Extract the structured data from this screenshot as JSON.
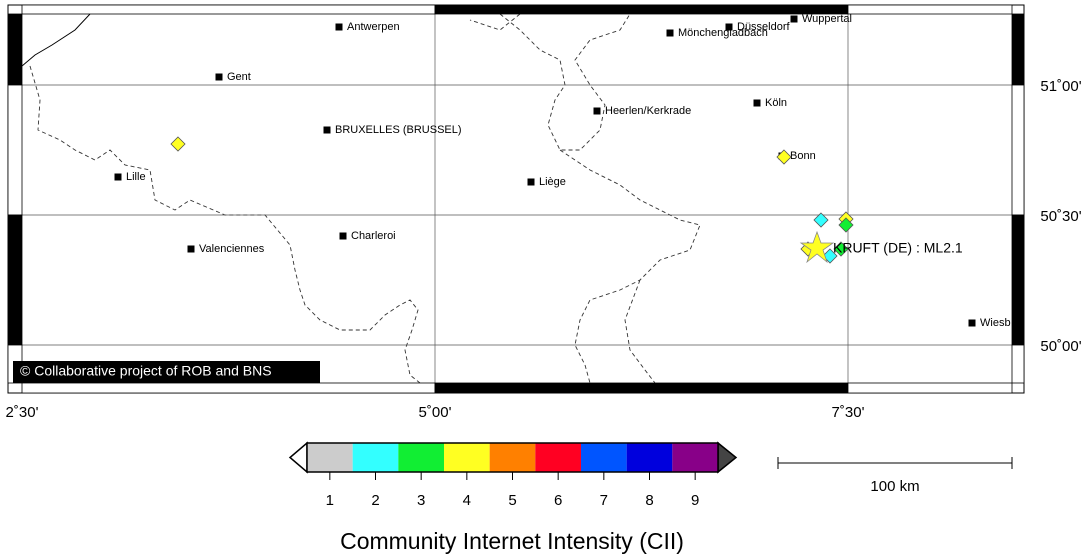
{
  "map": {
    "cities": [
      "Antwerpen",
      "Gent",
      "BRUXELLES (BRUSSEL)",
      "Lille",
      "Valenciennes",
      "Charleroi",
      "Liège",
      "Heerlen/Kerkrade",
      "Mönchengladbach",
      "Düsseldorf",
      "Wuppertal",
      "Köln",
      "Bonn",
      "Wiesb"
    ],
    "longitude_labels": [
      "2˚30'",
      "5˚00'",
      "7˚30'"
    ],
    "latitude_labels": [
      "51˚00'",
      "50˚30'",
      "50˚00'"
    ],
    "epicenter_label": "KRUFT (DE) : ML2.1",
    "copyright": "© Collaborative project of ROB and BNS",
    "scale_label": "100 km"
  },
  "legend": {
    "title": "Community Internet Intensity (CII)",
    "classes": [
      {
        "value": 1,
        "color": "#cccccc"
      },
      {
        "value": 2,
        "color": "#33ffff"
      },
      {
        "value": 3,
        "color": "#11ee33"
      },
      {
        "value": 4,
        "color": "#ffff22"
      },
      {
        "value": 5,
        "color": "#ff8000"
      },
      {
        "value": 6,
        "color": "#ff0022"
      },
      {
        "value": 7,
        "color": "#0055ff"
      },
      {
        "value": 8,
        "color": "#0000dd"
      },
      {
        "value": 9,
        "color": "#880088"
      }
    ]
  },
  "observations": [
    {
      "intensity": 4
    },
    {
      "intensity": 4
    },
    {
      "intensity": 2
    },
    {
      "intensity": 4
    },
    {
      "intensity": 3
    },
    {
      "intensity": 4
    },
    {
      "intensity": 2
    },
    {
      "intensity": 3
    }
  ]
}
